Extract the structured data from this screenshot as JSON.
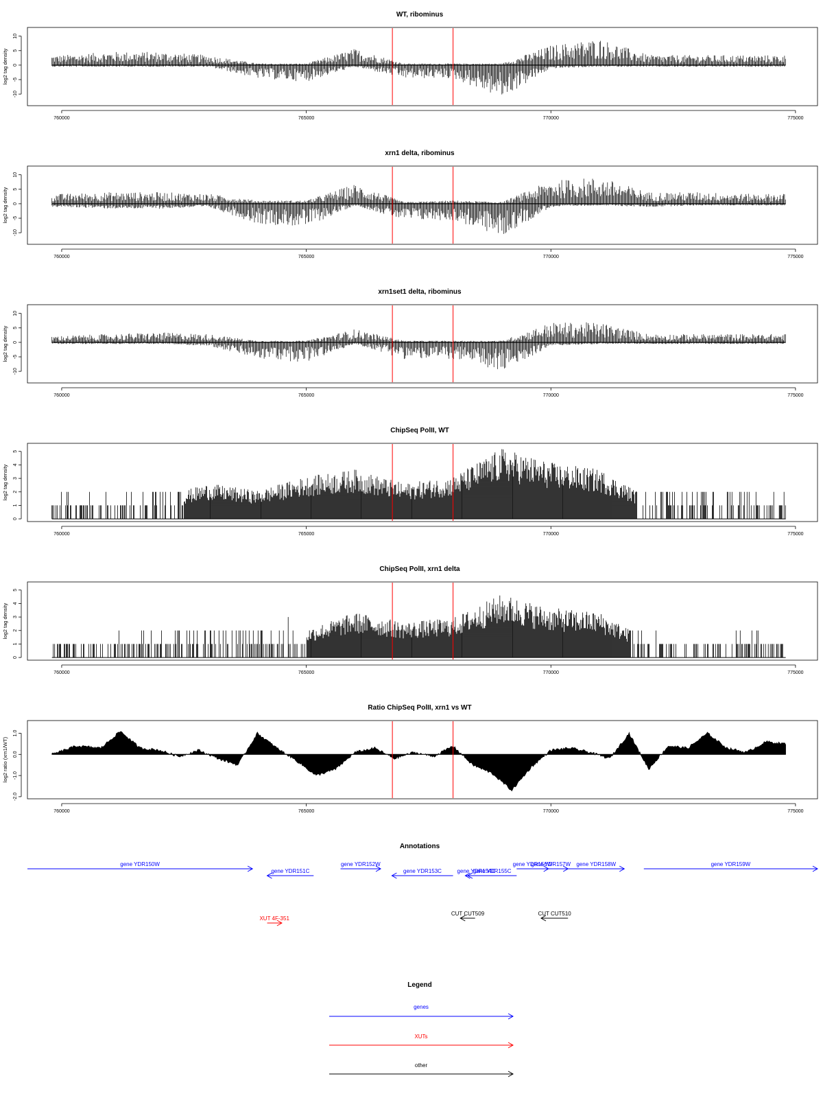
{
  "panels": [
    {
      "title": "WT, ribominus",
      "ylabel": "log2 tag density",
      "ylim": [
        -14,
        13
      ],
      "yticks": [
        -10,
        -5,
        0,
        5,
        10
      ],
      "ytick_labels": [
        "-10",
        "-5",
        "0",
        "5",
        "10"
      ],
      "kind": "stranded"
    },
    {
      "title": "xrn1 delta, ribominus",
      "ylabel": "log2 tag density",
      "ylim": [
        -14,
        13
      ],
      "yticks": [
        -10,
        -5,
        0,
        5,
        10
      ],
      "ytick_labels": [
        "-10",
        "-5",
        "0",
        "5",
        "10"
      ],
      "kind": "stranded"
    },
    {
      "title": "xrn1set1 delta, ribominus",
      "ylabel": "log2 tag density",
      "ylim": [
        -14,
        13
      ],
      "yticks": [
        -10,
        -5,
        0,
        5,
        10
      ],
      "ytick_labels": [
        "-10",
        "-5",
        "0",
        "5",
        "10"
      ],
      "kind": "stranded"
    },
    {
      "title": "ChipSeq PolII, WT",
      "ylabel": "log2 tag density",
      "ylim": [
        -0.2,
        5.6
      ],
      "yticks": [
        0,
        1,
        2,
        3,
        4,
        5
      ],
      "ytick_labels": [
        "0",
        "1",
        "2",
        "3",
        "4",
        "5"
      ],
      "kind": "chip"
    },
    {
      "title": "ChipSeq PolII, xrn1 delta",
      "ylabel": "log2 tag density",
      "ylim": [
        -0.2,
        5.6
      ],
      "yticks": [
        0,
        1,
        2,
        3,
        4,
        5
      ],
      "ytick_labels": [
        "0",
        "1",
        "2",
        "3",
        "4",
        "5"
      ],
      "kind": "chip"
    },
    {
      "title": "Ratio ChipSeq PolII, xrn1 vs WT",
      "ylabel": "log2 ratio (xrn1/WT)",
      "ylim": [
        -2.1,
        1.6
      ],
      "yticks": [
        -2,
        -1,
        0,
        1
      ],
      "ytick_labels": [
        "-2.0",
        "-1.0",
        "0.0",
        "1.0"
      ],
      "kind": "ratio"
    }
  ],
  "xaxis": {
    "range": [
      759300,
      775450
    ],
    "data_extent": [
      759800,
      774800
    ],
    "ticks": [
      760000,
      765000,
      770000,
      775000
    ],
    "tick_labels": [
      "760000",
      "765000",
      "770000",
      "775000"
    ]
  },
  "markers": {
    "positions": [
      766760,
      768000
    ],
    "color": "#ff0000"
  },
  "annotations": {
    "title": "Annotations",
    "items": [
      {
        "label": "gene YDR150W",
        "start": 759300,
        "end": 763900,
        "dir": "right",
        "type": "gene",
        "row": 0
      },
      {
        "label": "gene YDR151C",
        "start": 764200,
        "end": 765150,
        "dir": "left",
        "type": "gene",
        "row": 1
      },
      {
        "label": "gene YDR152W",
        "start": 765700,
        "end": 766520,
        "dir": "right",
        "type": "gene",
        "row": 0
      },
      {
        "label": "gene YDR153C",
        "start": 766750,
        "end": 768000,
        "dir": "left",
        "type": "gene",
        "row": 1
      },
      {
        "label": "gene YDR154C",
        "start": 768250,
        "end": 768700,
        "dir": "left",
        "type": "gene",
        "row": 1
      },
      {
        "label": "gene YDR155C",
        "start": 768300,
        "end": 769300,
        "dir": "left",
        "type": "gene",
        "row": 1
      },
      {
        "label": "gene YDR156W",
        "start": 769300,
        "end": 769950,
        "dir": "right",
        "type": "gene",
        "row": 0
      },
      {
        "label": "gene YDR157W",
        "start": 769650,
        "end": 770350,
        "dir": "right",
        "type": "gene",
        "row": 0
      },
      {
        "label": "gene YDR158W",
        "start": 770350,
        "end": 771500,
        "dir": "right",
        "type": "gene",
        "row": 0
      },
      {
        "label": "gene YDR159W",
        "start": 771900,
        "end": 775450,
        "dir": "right",
        "type": "gene",
        "row": 0
      },
      {
        "label": "XUT 4F-351",
        "start": 764200,
        "end": 764500,
        "dir": "right",
        "type": "xut",
        "row": 2
      },
      {
        "label": "CUT CUT509",
        "start": 768150,
        "end": 768450,
        "dir": "left",
        "type": "other",
        "row": 3
      },
      {
        "label": "CUT CUT510",
        "start": 769800,
        "end": 770350,
        "dir": "left",
        "type": "other",
        "row": 3
      }
    ]
  },
  "legend": {
    "title": "Legend",
    "items": [
      {
        "label": "genes",
        "color": "#0000ff"
      },
      {
        "label": "XUTs",
        "color": "#ff0000"
      },
      {
        "label": "other",
        "color": "#000000"
      }
    ]
  },
  "colors": {
    "signal": "#000000",
    "gene": "#0000ff",
    "xut": "#ff0000",
    "other": "#000000",
    "axis": "#000000"
  },
  "chart_data": [
    {
      "type": "bar",
      "title": "WT, ribominus",
      "xlabel": "",
      "ylabel": "log2 tag density",
      "xlim": [
        759300,
        775450
      ],
      "ylim": [
        -14,
        13
      ],
      "series": [
        {
          "name": "plus strand",
          "x": [
            760000,
            761000,
            762000,
            763000,
            764000,
            765000,
            766000,
            767000,
            768000,
            769000,
            770000,
            771000,
            772000,
            773000,
            774000,
            774700
          ],
          "values": [
            3,
            4,
            4,
            3,
            0.5,
            0.5,
            5,
            0.5,
            0.5,
            0.5,
            6,
            8,
            3,
            3,
            3,
            3
          ]
        },
        {
          "name": "minus strand",
          "x": [
            760000,
            761000,
            762000,
            763000,
            764000,
            765000,
            766000,
            767000,
            768000,
            769000,
            770000,
            771000,
            772000,
            773000,
            774000,
            774700
          ],
          "values": [
            -0.5,
            -0.5,
            -0.5,
            -0.5,
            -4,
            -5,
            -0.5,
            -4,
            -4,
            -10,
            -1,
            -0.5,
            -0.5,
            -0.5,
            -0.5,
            -0.5
          ]
        }
      ]
    },
    {
      "type": "bar",
      "title": "xrn1 delta, ribominus",
      "xlabel": "",
      "ylabel": "log2 tag density",
      "xlim": [
        759300,
        775450
      ],
      "ylim": [
        -14,
        13
      ],
      "series": [
        {
          "name": "plus strand",
          "x": [
            760000,
            761000,
            762000,
            763000,
            764000,
            765000,
            766000,
            767000,
            768000,
            769000,
            770000,
            771000,
            772000,
            773000,
            774000,
            774700
          ],
          "values": [
            3,
            3.5,
            3.5,
            3,
            1,
            1,
            6,
            0.5,
            1,
            0.5,
            7,
            8,
            3.5,
            3.5,
            3,
            3
          ]
        },
        {
          "name": "minus strand",
          "x": [
            760000,
            761000,
            762000,
            763000,
            764000,
            765000,
            766000,
            767000,
            768000,
            769000,
            770000,
            771000,
            772000,
            773000,
            774000,
            774700
          ],
          "values": [
            -1,
            -1.5,
            -1.5,
            -1,
            -6,
            -7,
            -0.5,
            -5,
            -5,
            -10,
            -1,
            -0.5,
            -1,
            -0.5,
            -0.5,
            -0.5
          ]
        }
      ]
    },
    {
      "type": "bar",
      "title": "xrn1set1 delta, ribominus",
      "xlabel": "",
      "ylabel": "log2 tag density",
      "xlim": [
        759300,
        775450
      ],
      "ylim": [
        -14,
        13
      ],
      "series": [
        {
          "name": "plus strand",
          "x": [
            760000,
            761000,
            762000,
            763000,
            764000,
            765000,
            766000,
            767000,
            768000,
            769000,
            770000,
            771000,
            772000,
            773000,
            774000,
            774700
          ],
          "values": [
            2,
            2.5,
            3,
            2.5,
            0.5,
            0.5,
            4,
            0.5,
            0.5,
            0.5,
            6,
            6,
            2.5,
            2.5,
            2.5,
            2.5
          ]
        },
        {
          "name": "minus strand",
          "x": [
            760000,
            761000,
            762000,
            763000,
            764000,
            765000,
            766000,
            767000,
            768000,
            769000,
            770000,
            771000,
            772000,
            773000,
            774000,
            774700
          ],
          "values": [
            -0.5,
            -0.5,
            -0.5,
            -1,
            -5,
            -6,
            -0.5,
            -5,
            -5,
            -9,
            -1,
            -0.5,
            -0.5,
            -0.5,
            -0.5,
            -0.5
          ]
        }
      ]
    },
    {
      "type": "bar",
      "title": "ChipSeq PolII, WT",
      "xlabel": "",
      "ylabel": "log2 tag density",
      "xlim": [
        759300,
        775450
      ],
      "ylim": [
        -0.2,
        5.6
      ],
      "series": [
        {
          "x": [
            760000,
            761000,
            762000,
            763000,
            764000,
            765000,
            766000,
            767000,
            768000,
            769000,
            770000,
            771000,
            772000,
            773000,
            774000,
            774700
          ],
          "values": [
            1,
            1,
            1.5,
            2.5,
            2,
            3,
            3.5,
            2.5,
            3,
            5,
            4,
            3.5,
            1.5,
            1.5,
            1.5,
            1
          ]
        }
      ]
    },
    {
      "type": "bar",
      "title": "ChipSeq PolII, xrn1 delta",
      "xlabel": "",
      "ylabel": "log2 tag density",
      "xlim": [
        759300,
        775450
      ],
      "ylim": [
        -0.2,
        5.6
      ],
      "series": [
        {
          "x": [
            760000,
            761000,
            762000,
            763000,
            764000,
            765000,
            766000,
            767000,
            768000,
            769000,
            770000,
            771000,
            772000,
            773000,
            774000,
            774700
          ],
          "values": [
            1,
            1,
            1.2,
            2,
            1.8,
            2,
            3.2,
            2.5,
            2.8,
            4.5,
            3.5,
            3.2,
            1.2,
            0.5,
            1.2,
            0.5
          ]
        }
      ]
    },
    {
      "type": "area",
      "title": "Ratio ChipSeq PolII, xrn1 vs WT",
      "xlabel": "",
      "ylabel": "log2 ratio (xrn1/WT)",
      "xlim": [
        759300,
        775450
      ],
      "ylim": [
        -2.1,
        1.6
      ],
      "series": [
        {
          "x": [
            759800,
            760300,
            760800,
            761200,
            761600,
            762000,
            762400,
            762800,
            763200,
            763600,
            764000,
            764400,
            764800,
            765200,
            765600,
            766000,
            766400,
            766800,
            767200,
            767600,
            768000,
            768400,
            768800,
            769200,
            769600,
            770000,
            770400,
            770800,
            771200,
            771600,
            772000,
            772400,
            772800,
            773200,
            773600,
            774000,
            774400,
            774800
          ],
          "values": [
            0,
            0.4,
            0.3,
            1.1,
            0.3,
            0.2,
            -0.1,
            0.2,
            -0.2,
            -0.5,
            1,
            0.3,
            -0.3,
            -1,
            -0.7,
            0.1,
            0.3,
            -0.2,
            0.1,
            -0.1,
            0.4,
            -0.5,
            -0.9,
            -1.7,
            -0.6,
            0.2,
            0.3,
            0.1,
            -0.2,
            1,
            -0.7,
            0.4,
            0.3,
            1,
            0.3,
            0.1,
            0.6,
            0.5
          ]
        }
      ]
    }
  ]
}
